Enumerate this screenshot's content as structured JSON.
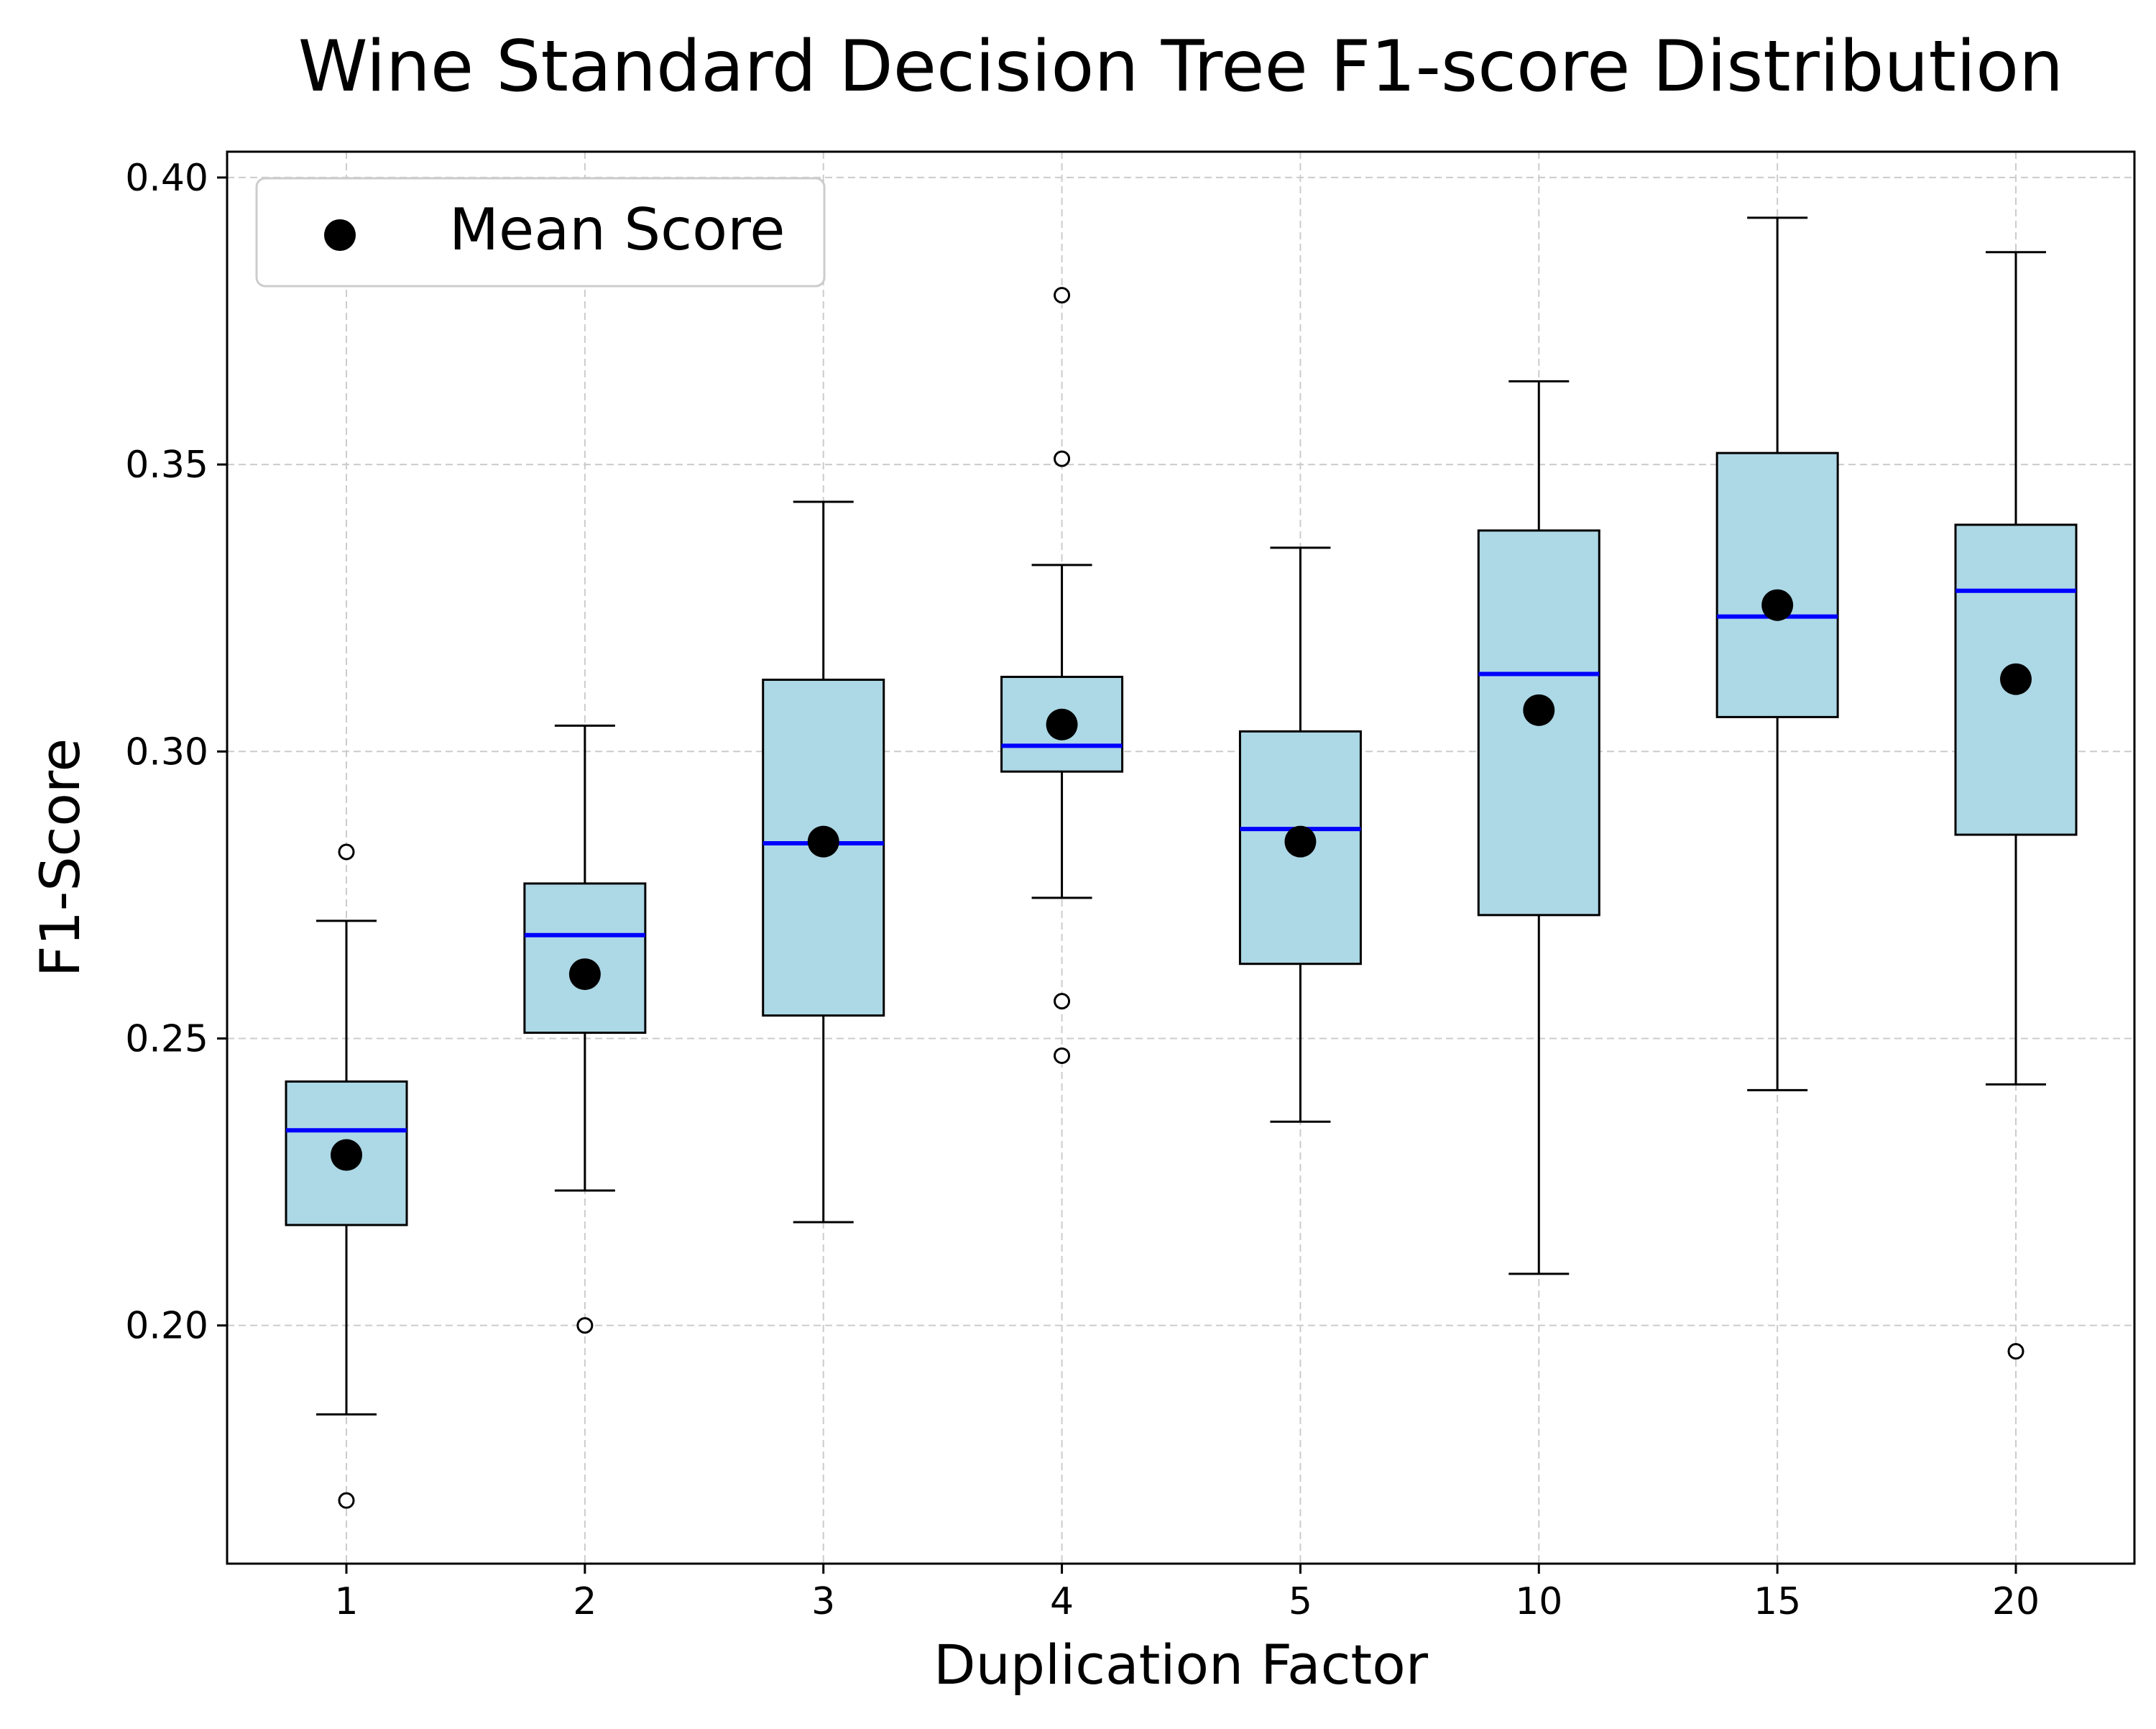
{
  "chart_data": {
    "type": "box",
    "title": "Wine Standard Decision Tree F1-score Distribution",
    "xlabel": "Duplication Factor",
    "ylabel": "F1-Score",
    "categories": [
      "1",
      "2",
      "3",
      "4",
      "5",
      "10",
      "15",
      "20"
    ],
    "ylim": [
      0.1585,
      0.4045
    ],
    "yticks": [
      0.2,
      0.25,
      0.3,
      0.35,
      0.4
    ],
    "ytick_labels": [
      "0.20",
      "0.25",
      "0.30",
      "0.35",
      "0.40"
    ],
    "grid": true,
    "legend": {
      "position": "top-left",
      "entries": [
        "Mean Score"
      ]
    },
    "colors": {
      "box_fill": "#add8e6",
      "median": "#0000ff",
      "mean": "#000000",
      "grid": "#cccccc"
    },
    "series": [
      {
        "category": "1",
        "whisker_low": 0.1845,
        "q1": 0.2175,
        "median": 0.234,
        "q3": 0.2425,
        "whisker_high": 0.2705,
        "mean": 0.2297,
        "outliers": [
          0.2825,
          0.1695
        ]
      },
      {
        "category": "2",
        "whisker_low": 0.2235,
        "q1": 0.251,
        "median": 0.268,
        "q3": 0.277,
        "whisker_high": 0.3045,
        "mean": 0.2612,
        "outliers": [
          0.2
        ]
      },
      {
        "category": "3",
        "whisker_low": 0.218,
        "q1": 0.254,
        "median": 0.284,
        "q3": 0.3125,
        "whisker_high": 0.3435,
        "mean": 0.2843,
        "outliers": []
      },
      {
        "category": "4",
        "whisker_low": 0.2745,
        "q1": 0.2965,
        "median": 0.301,
        "q3": 0.313,
        "whisker_high": 0.3325,
        "mean": 0.3047,
        "outliers": [
          0.3795,
          0.351,
          0.2565,
          0.247
        ]
      },
      {
        "category": "5",
        "whisker_low": 0.2355,
        "q1": 0.263,
        "median": 0.2865,
        "q3": 0.3035,
        "whisker_high": 0.3355,
        "mean": 0.2843,
        "outliers": []
      },
      {
        "category": "10",
        "whisker_low": 0.209,
        "q1": 0.2715,
        "median": 0.3135,
        "q3": 0.3385,
        "whisker_high": 0.3645,
        "mean": 0.3072,
        "outliers": []
      },
      {
        "category": "15",
        "whisker_low": 0.241,
        "q1": 0.306,
        "median": 0.3235,
        "q3": 0.352,
        "whisker_high": 0.393,
        "mean": 0.3255,
        "outliers": []
      },
      {
        "category": "20",
        "whisker_low": 0.242,
        "q1": 0.2855,
        "median": 0.328,
        "q3": 0.3395,
        "whisker_high": 0.387,
        "mean": 0.3126,
        "outliers": [
          0.1955
        ]
      }
    ]
  }
}
